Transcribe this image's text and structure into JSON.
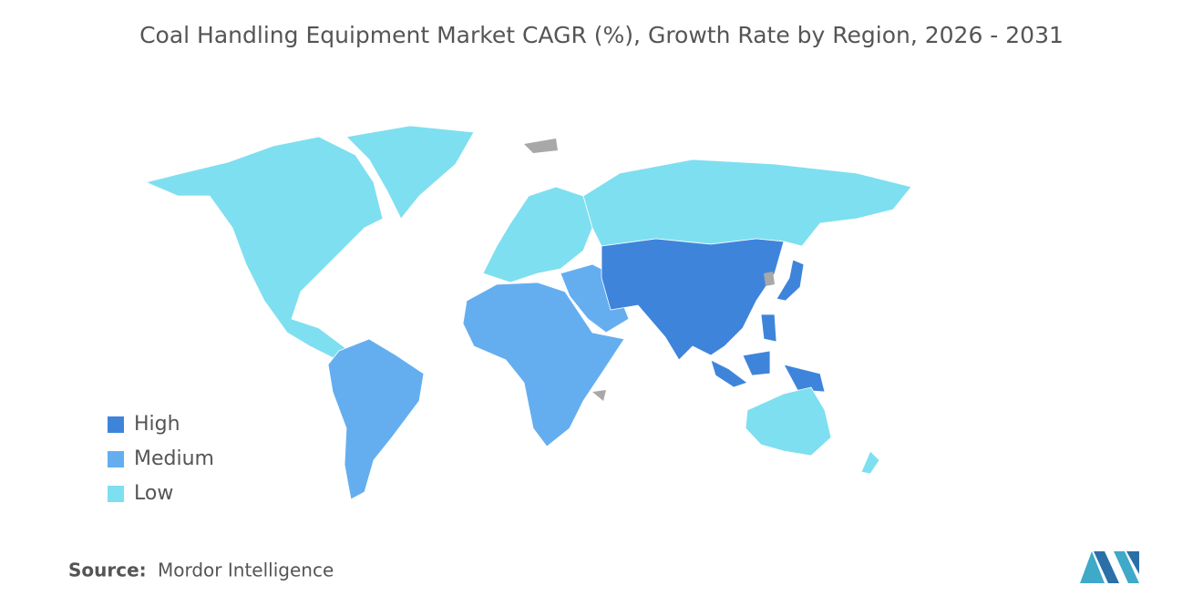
{
  "title": "Coal Handling Equipment Market CAGR (%), Growth Rate by Region, 2026 - 2031",
  "legend": [
    {
      "label": "High",
      "color": "#3f84db"
    },
    {
      "label": "Medium",
      "color": "#64aef0"
    },
    {
      "label": "Low",
      "color": "#7edff0"
    }
  ],
  "source": {
    "label": "Source:",
    "text": "Mordor Intelligence"
  }
}
